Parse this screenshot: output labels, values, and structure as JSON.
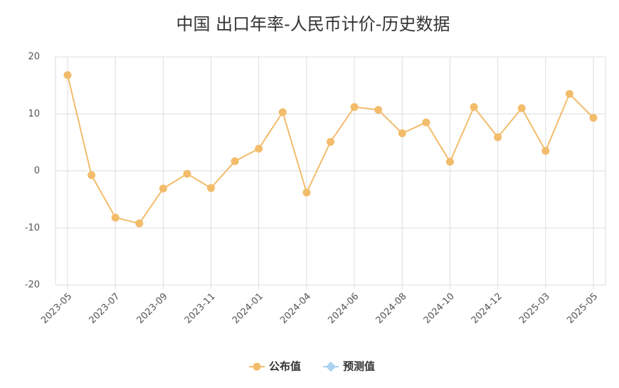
{
  "chart_data": {
    "type": "line",
    "title": "中国 出口年率-人民币计价-历史数据",
    "categories": [
      "2023-05",
      null,
      "2023-07",
      null,
      "2023-09",
      null,
      "2023-11",
      null,
      "2024-01",
      null,
      "2024-04",
      null,
      "2024-06",
      null,
      "2024-08",
      null,
      "2024-10",
      null,
      "2024-12",
      null,
      "2025-03",
      null,
      "2025-05"
    ],
    "series": [
      {
        "name": "公布值",
        "color": "#f2bc6b",
        "values": [
          16.8,
          -0.75,
          -8.2,
          -9.2,
          -3.1,
          -0.5,
          -3.0,
          1.7,
          3.9,
          10.3,
          -3.8,
          5.1,
          11.2,
          10.7,
          6.6,
          8.5,
          1.6,
          11.2,
          5.9,
          11.0,
          3.5,
          13.5,
          9.3
        ]
      },
      {
        "name": "预测值",
        "color": "#a9d2f0",
        "values": [
          null,
          null,
          null,
          null,
          null,
          null,
          null,
          null,
          null,
          null,
          null,
          null,
          null,
          null,
          null,
          null,
          null,
          null,
          null,
          null,
          null,
          null,
          null
        ]
      }
    ],
    "ylim": [
      -20,
      20
    ],
    "yticks": [
      -20,
      -10,
      0,
      10,
      20
    ],
    "grid": true
  }
}
